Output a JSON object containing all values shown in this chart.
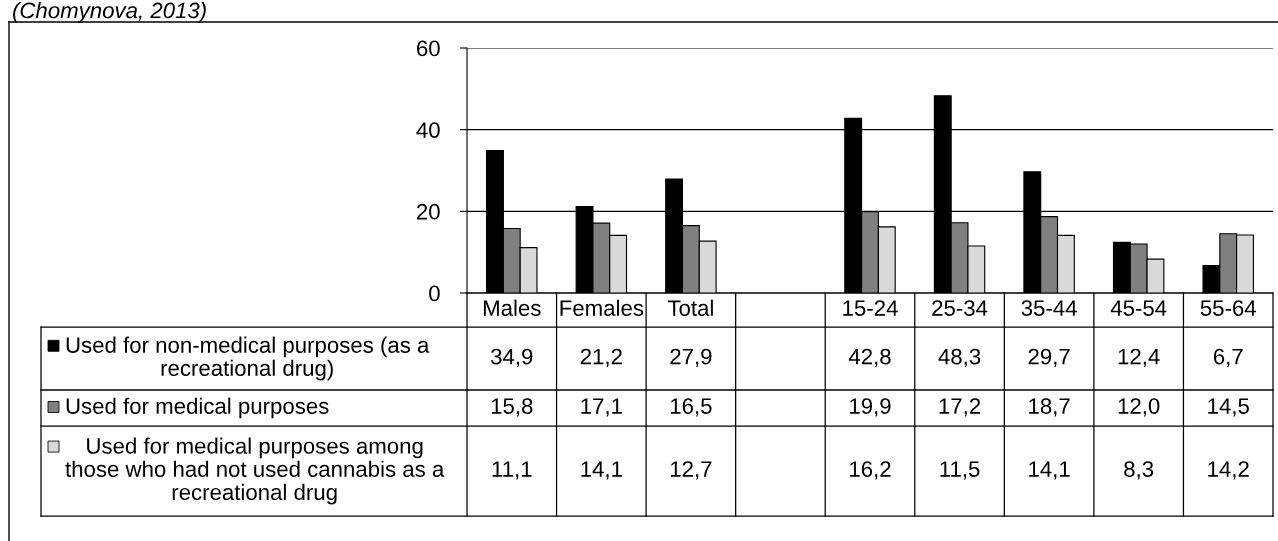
{
  "chart_data": {
    "type": "bar",
    "annotations": [
      "(Chomynova, 2013)"
    ],
    "categories": [
      "Males",
      "Females",
      "Total",
      null,
      "15-24",
      "25-34",
      "35-44",
      "45-54",
      "55-64"
    ],
    "series": [
      {
        "name": "Used for non-medical purposes (as a recreational drug)",
        "color": "#000000",
        "values": [
          34.9,
          21.2,
          27.9,
          null,
          42.8,
          48.3,
          29.7,
          12.4,
          6.7
        ],
        "value_labels": [
          "34,9",
          "21,2",
          "27,9",
          null,
          "42,8",
          "48,3",
          "29,7",
          "12,4",
          "6,7"
        ]
      },
      {
        "name": "Used for medical purposes",
        "color": "#808080",
        "values": [
          15.8,
          17.1,
          16.5,
          null,
          19.9,
          17.2,
          18.7,
          12.0,
          14.5
        ],
        "value_labels": [
          "15,8",
          "17,1",
          "16,5",
          null,
          "19,9",
          "17,2",
          "18,7",
          "12,0",
          "14,5"
        ]
      },
      {
        "name": "Used for medical purposes among those who had not used cannabis as a recreational drug",
        "color": "#d9d9d9",
        "values": [
          11.1,
          14.1,
          12.7,
          null,
          16.2,
          11.5,
          14.1,
          8.3,
          14.2
        ],
        "value_labels": [
          "11,1",
          "14,1",
          "12,7",
          null,
          "16,2",
          "11,5",
          "14,1",
          "8,3",
          "14,2"
        ]
      }
    ],
    "ylim": [
      0,
      60
    ],
    "yticks": [
      0,
      20,
      40,
      60
    ],
    "grid": "y",
    "legend": "bottom"
  }
}
